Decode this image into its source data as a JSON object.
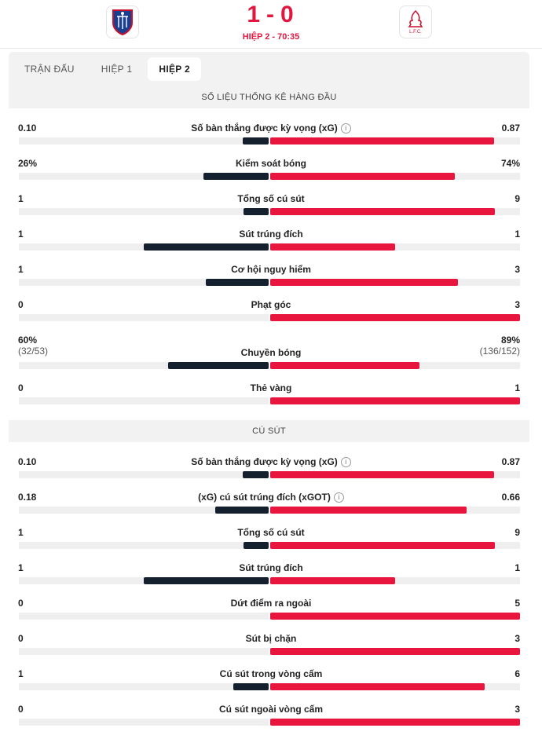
{
  "match": {
    "home_score": "1",
    "away_score": "0",
    "score_sep": "-",
    "period": "HIỆP 2 - 70:35"
  },
  "tabs": [
    {
      "label": "TRẬN ĐẤU",
      "active": false
    },
    {
      "label": "HIỆP 1",
      "active": false
    },
    {
      "label": "HIỆP 2",
      "active": true
    }
  ],
  "sections": [
    {
      "title": "SỐ LIỆU THỐNG KÊ HÀNG ĐẦU",
      "stats": [
        {
          "name": "Số bàn thắng được kỳ vọng (xG)",
          "home": "0.10",
          "away": "0.87",
          "home_share": 0.103,
          "away_share": 0.897,
          "info": true
        },
        {
          "name": "Kiểm soát bóng",
          "home": "26%",
          "away": "74%",
          "home_share": 0.26,
          "away_share": 0.74
        },
        {
          "name": "Tổng số cú sút",
          "home": "1",
          "away": "9",
          "home_share": 0.1,
          "away_share": 0.9
        },
        {
          "name": "Sút trúng đích",
          "home": "1",
          "away": "1",
          "home_share": 0.5,
          "away_share": 0.5
        },
        {
          "name": "Cơ hội nguy hiểm",
          "home": "1",
          "away": "3",
          "home_share": 0.25,
          "away_share": 0.75
        },
        {
          "name": "Phạt góc",
          "home": "0",
          "away": "3",
          "home_share": 0.0,
          "away_share": 1.0
        },
        {
          "name": "Chuyền bóng",
          "home": "60%",
          "away": "89%",
          "home_sub": "(32/53)",
          "away_sub": "(136/152)",
          "home_share": 0.403,
          "away_share": 0.597
        },
        {
          "name": "Thẻ vàng",
          "home": "0",
          "away": "1",
          "home_share": 0.0,
          "away_share": 1.0
        }
      ]
    },
    {
      "title": "CÚ SÚT",
      "stats": [
        {
          "name": "Số bàn thắng được kỳ vọng (xG)",
          "home": "0.10",
          "away": "0.87",
          "home_share": 0.103,
          "away_share": 0.897,
          "info": true
        },
        {
          "name": "(xG) cú sút trúng đích (xGOT)",
          "home": "0.18",
          "away": "0.66",
          "home_share": 0.214,
          "away_share": 0.786,
          "info": true
        },
        {
          "name": "Tổng số cú sút",
          "home": "1",
          "away": "9",
          "home_share": 0.1,
          "away_share": 0.9
        },
        {
          "name": "Sút trúng đích",
          "home": "1",
          "away": "1",
          "home_share": 0.5,
          "away_share": 0.5
        },
        {
          "name": "Dứt điểm ra ngoài",
          "home": "0",
          "away": "5",
          "home_share": 0.0,
          "away_share": 1.0
        },
        {
          "name": "Sút bị chặn",
          "home": "0",
          "away": "3",
          "home_share": 0.0,
          "away_share": 1.0
        },
        {
          "name": "Cú sút trong vòng cấm",
          "home": "1",
          "away": "6",
          "home_share": 0.143,
          "away_share": 0.857
        },
        {
          "name": "Cú sút ngoài vòng cấm",
          "home": "0",
          "away": "3",
          "home_share": 0.0,
          "away_share": 1.0
        }
      ]
    }
  ],
  "colors": {
    "home_bar": "#14202d",
    "away_bar": "#e8153f",
    "accent": "#e1173f"
  },
  "icons": {
    "home_logo": "crystal-palace-crest-icon",
    "away_logo": "liverpool-crest-icon",
    "info": "info-icon"
  }
}
